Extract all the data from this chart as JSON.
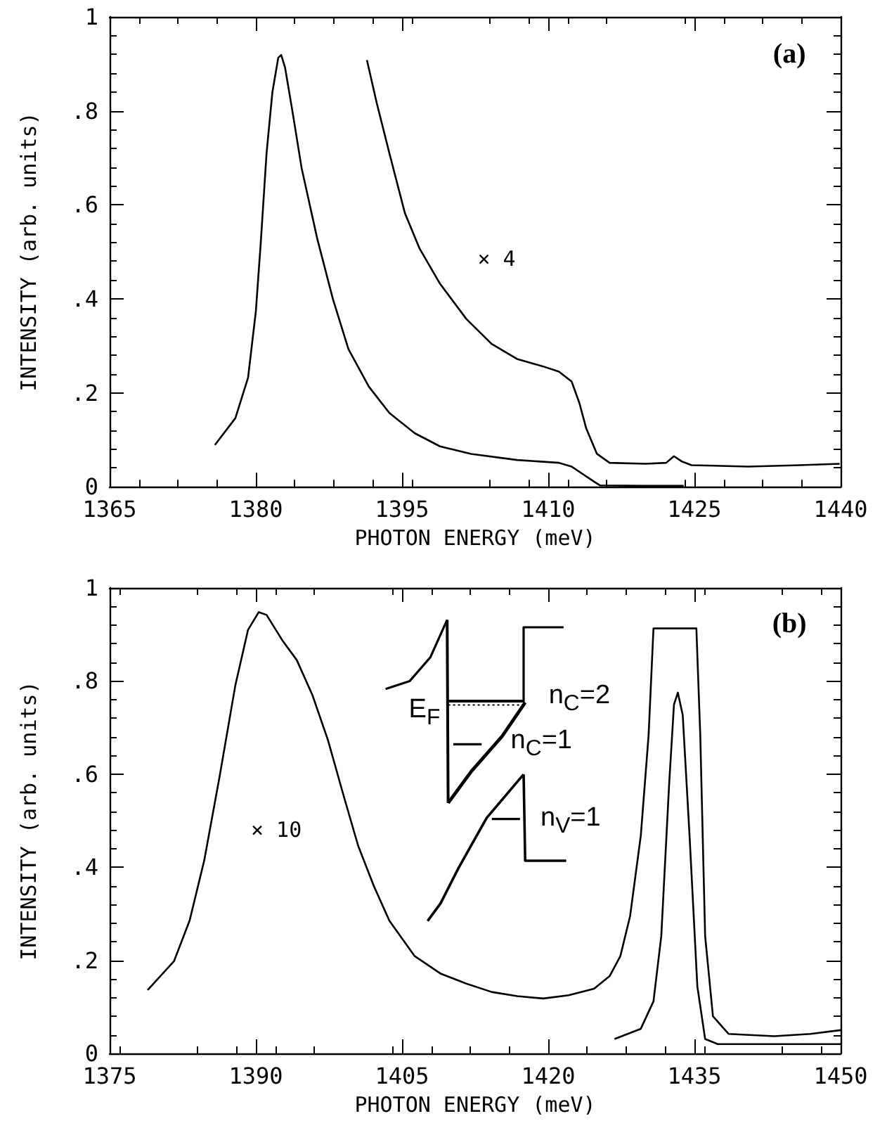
{
  "chart_data": [
    {
      "type": "line",
      "xlabel": "PHOTON ENERGY (meV)",
      "ylabel": "INTENSITY (arb. units)",
      "xlim": [
        1365,
        1440
      ],
      "xticks": [
        1365,
        1380,
        1395,
        1410,
        1425,
        1440
      ],
      "ylim": [
        0,
        1
      ],
      "yticks": [
        {
          "value": 0,
          "label": "0"
        },
        {
          "value": 0.2,
          "label": ".2"
        },
        {
          "value": 0.4,
          "label": ".4"
        },
        {
          "value": 0.6,
          "label": ".6"
        },
        {
          "value": 0.8,
          "label": ".8"
        },
        {
          "value": 1,
          "label": "1"
        }
      ],
      "grid": false,
      "marker": "none",
      "line_style": "solid",
      "annotations": [
        "(a)",
        "× 4"
      ],
      "series": [
        {
          "color": "#000000",
          "x": [
            1375.8,
            1377.9,
            1379.2,
            1380.0,
            1380.5,
            1381.1,
            1381.7,
            1382.3,
            1382.6,
            1383.0,
            1383.7,
            1384.7,
            1386.3,
            1387.9,
            1389.5,
            1391.6,
            1393.7,
            1396.3,
            1398.9,
            1402.1,
            1406.8,
            1411.1,
            1412.4,
            1414.7,
            1415.3,
            1420.0,
            1423.9
          ],
          "values": [
            0.089,
            0.146,
            0.232,
            0.373,
            0.518,
            0.71,
            0.84,
            0.913,
            0.919,
            0.892,
            0.806,
            0.678,
            0.528,
            0.4,
            0.293,
            0.213,
            0.157,
            0.114,
            0.086,
            0.07,
            0.057,
            0.051,
            0.043,
            0.011,
            0.003,
            0.002,
            0.002
          ]
        },
        {
          "color": "#000000",
          "x": [
            1391.4,
            1392.4,
            1393.7,
            1395.3,
            1396.8,
            1398.9,
            1401.6,
            1404.2,
            1406.8,
            1409.5,
            1411.1,
            1412.4,
            1413.2,
            1413.9,
            1415.0,
            1416.3,
            1420.0,
            1422.1,
            1422.9,
            1423.7,
            1424.7,
            1430.5,
            1435.8,
            1439.9
          ],
          "values": [
            0.908,
            0.817,
            0.71,
            0.582,
            0.507,
            0.432,
            0.357,
            0.304,
            0.272,
            0.256,
            0.245,
            0.224,
            0.178,
            0.124,
            0.07,
            0.051,
            0.049,
            0.051,
            0.065,
            0.054,
            0.046,
            0.043,
            0.046,
            0.049
          ]
        }
      ]
    },
    {
      "type": "line",
      "xlabel": "PHOTON ENERGY (meV)",
      "ylabel": "INTENSITY (arb. units)",
      "xlim": [
        1375,
        1450
      ],
      "xticks": [
        1375,
        1390,
        1405,
        1420,
        1435,
        1450
      ],
      "ylim": [
        0,
        1
      ],
      "yticks": [
        {
          "value": 0,
          "label": "0"
        },
        {
          "value": 0.2,
          "label": ".2"
        },
        {
          "value": 0.4,
          "label": ".4"
        },
        {
          "value": 0.6,
          "label": ".6"
        },
        {
          "value": 0.8,
          "label": ".8"
        },
        {
          "value": 1,
          "label": "1"
        }
      ],
      "grid": false,
      "marker": "none",
      "line_style": "solid",
      "annotations": [
        "(b)",
        "× 10",
        "E$_{F}$",
        "n$_{C}$=2",
        "n$_{C}$=1",
        "n$_{V}$=1"
      ],
      "series": [
        {
          "color": "#000000",
          "x": [
            1378.9,
            1381.6,
            1383.2,
            1384.7,
            1386.3,
            1387.9,
            1389.2,
            1390.3,
            1391.1,
            1392.7,
            1394.2,
            1395.8,
            1397.4,
            1399.0,
            1400.5,
            1402.1,
            1403.7,
            1406.3,
            1409.0,
            1411.6,
            1414.2,
            1416.8,
            1419.5,
            1422.1,
            1424.7,
            1426.3,
            1427.4,
            1428.4,
            1429.5,
            1430.3,
            1430.8,
            1435.2,
            1435.6,
            1436.1,
            1436.9,
            1438.5,
            1443.2,
            1446.9,
            1450
          ],
          "values": [
            0.136,
            0.198,
            0.285,
            0.414,
            0.597,
            0.791,
            0.91,
            0.948,
            0.942,
            0.888,
            0.845,
            0.77,
            0.673,
            0.554,
            0.446,
            0.36,
            0.285,
            0.209,
            0.171,
            0.15,
            0.132,
            0.123,
            0.118,
            0.125,
            0.139,
            0.166,
            0.209,
            0.295,
            0.468,
            0.684,
            0.913,
            0.913,
            0.684,
            0.252,
            0.08,
            0.042,
            0.037,
            0.042,
            0.05
          ]
        },
        {
          "color": "#000000",
          "x": [
            1426.8,
            1429.5,
            1430.8,
            1431.6,
            1432.4,
            1432.9,
            1433.3,
            1433.8,
            1434.5,
            1435.3,
            1436.1,
            1437.4,
            1450
          ],
          "values": [
            0.031,
            0.053,
            0.112,
            0.252,
            0.576,
            0.749,
            0.775,
            0.727,
            0.468,
            0.144,
            0.031,
            0.02,
            0.02
          ]
        }
      ]
    }
  ]
}
